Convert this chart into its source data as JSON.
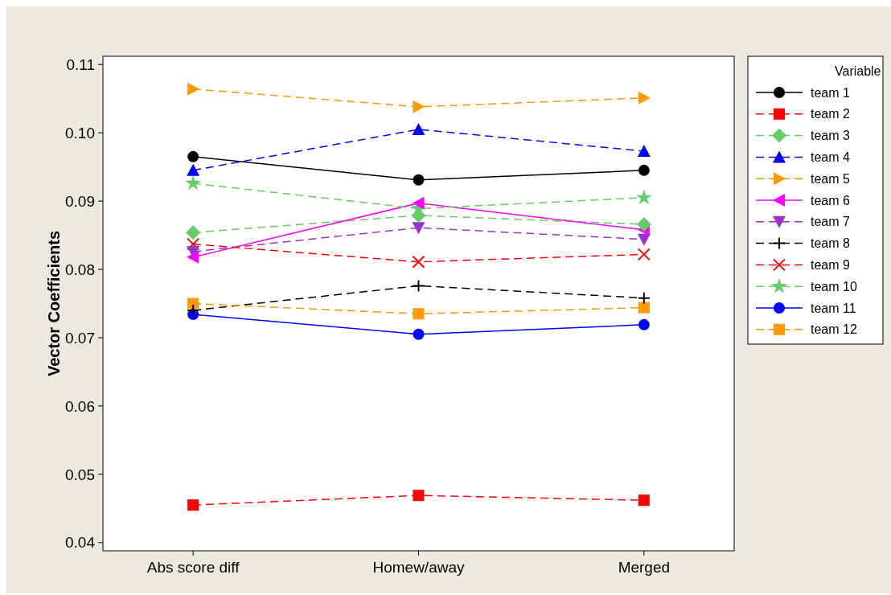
{
  "chart_data": {
    "type": "line",
    "ylabel": "Vector Coefficients",
    "legend_title": "Variable",
    "legend": "right",
    "grid": false,
    "categories": [
      "Abs score diff",
      "Homew/away",
      "Merged"
    ],
    "ylim": [
      0.0388,
      0.1112
    ],
    "yticks": [
      {
        "value": 0.04,
        "label": "0.04"
      },
      {
        "value": 0.05,
        "label": "0.05"
      },
      {
        "value": 0.06,
        "label": "0.06"
      },
      {
        "value": 0.07,
        "label": "0.07"
      },
      {
        "value": 0.08,
        "label": "0.08"
      },
      {
        "value": 0.09,
        "label": "0.09"
      },
      {
        "value": 0.1,
        "label": "0.10"
      },
      {
        "value": 0.11,
        "label": "0.11"
      }
    ],
    "series": [
      {
        "name": "team 1",
        "color": "#000000",
        "marker": "circle",
        "line_style": "solid",
        "values": [
          0.0965,
          0.0931,
          0.0945
        ]
      },
      {
        "name": "team 2",
        "color": "#ff0000",
        "marker": "square",
        "line_style": "dashed",
        "values": [
          0.0455,
          0.0469,
          0.0462
        ]
      },
      {
        "name": "team 3",
        "color": "#66cc66",
        "marker": "diamond",
        "line_style": "dashed",
        "values": [
          0.0854,
          0.0879,
          0.0866
        ]
      },
      {
        "name": "team 4",
        "color": "#0000ff",
        "marker": "triangle",
        "line_style": "dashed",
        "values": [
          0.0945,
          0.1005,
          0.0973
        ]
      },
      {
        "name": "team 5",
        "color": "#ff9900",
        "marker": "triangle-right",
        "line_style": "dashed",
        "values": [
          0.1064,
          0.1038,
          0.1051
        ]
      },
      {
        "name": "team 6",
        "color": "#ff00ff",
        "marker": "triangle-left",
        "line_style": "solid",
        "values": [
          0.0818,
          0.0897,
          0.0858
        ]
      },
      {
        "name": "team 7",
        "color": "#9933cc",
        "marker": "triangle-down",
        "line_style": "dashed",
        "values": [
          0.0826,
          0.0861,
          0.0844
        ]
      },
      {
        "name": "team 8",
        "color": "#000000",
        "marker": "plus",
        "line_style": "dashed",
        "values": [
          0.074,
          0.0776,
          0.0758
        ]
      },
      {
        "name": "team 9",
        "color": "#ff0000",
        "marker": "cross",
        "line_style": "dashed",
        "values": [
          0.0837,
          0.0811,
          0.0822
        ]
      },
      {
        "name": "team 10",
        "color": "#66cc66",
        "marker": "star",
        "line_style": "dashed",
        "values": [
          0.0926,
          0.0889,
          0.0905
        ]
      },
      {
        "name": "team 11",
        "color": "#0000ff",
        "marker": "circle",
        "line_style": "solid",
        "values": [
          0.0734,
          0.0705,
          0.0719
        ]
      },
      {
        "name": "team 12",
        "color": "#ff9900",
        "marker": "square",
        "line_style": "dashed",
        "values": [
          0.075,
          0.0735,
          0.0744
        ]
      }
    ]
  }
}
